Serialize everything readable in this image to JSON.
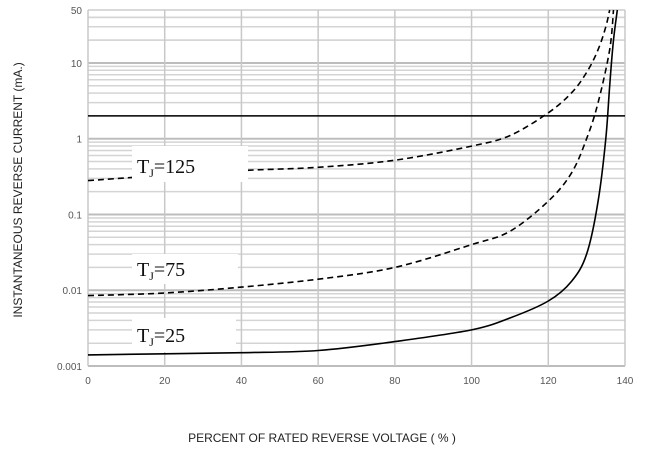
{
  "chart_data": {
    "type": "line",
    "xlabel": "PERCENT OF RATED REVERSE VOLTAGE ( % )",
    "ylabel": "INSTANTANEOUS REVERSE CURRENT (mA.)",
    "x_ticks": [
      "0",
      "20",
      "40",
      "60",
      "80",
      "100",
      "120",
      "140"
    ],
    "y_ticks": [
      "0.001",
      "0.01",
      "0.1",
      "1",
      "10",
      "50"
    ],
    "x_range": [
      0,
      140
    ],
    "y_range": [
      0.001,
      50
    ],
    "y_scale": "log",
    "grid": true,
    "reference_line_y": 2,
    "series": [
      {
        "label_main": "T",
        "label_sub": "J",
        "label_tail": "=125",
        "style": "dashed",
        "points": [
          [
            0,
            0.28
          ],
          [
            20,
            0.33
          ],
          [
            40,
            0.38
          ],
          [
            60,
            0.42
          ],
          [
            80,
            0.52
          ],
          [
            100,
            0.8
          ],
          [
            110,
            1.1
          ],
          [
            120,
            2.2
          ],
          [
            126,
            4
          ],
          [
            130,
            7.5
          ],
          [
            133,
            15
          ],
          [
            135,
            30
          ],
          [
            136,
            50
          ]
        ]
      },
      {
        "label_main": "T",
        "label_sub": "J",
        "label_tail": "=75",
        "style": "dashed",
        "points": [
          [
            0,
            0.0085
          ],
          [
            20,
            0.0092
          ],
          [
            40,
            0.011
          ],
          [
            60,
            0.014
          ],
          [
            80,
            0.02
          ],
          [
            100,
            0.04
          ],
          [
            110,
            0.06
          ],
          [
            120,
            0.15
          ],
          [
            126,
            0.35
          ],
          [
            130,
            1
          ],
          [
            133,
            3
          ],
          [
            136,
            15
          ],
          [
            137,
            50
          ]
        ]
      },
      {
        "label_main": "T",
        "label_sub": "J",
        "label_tail": "=25",
        "style": "solid",
        "points": [
          [
            0,
            0.0014
          ],
          [
            20,
            0.00145
          ],
          [
            40,
            0.0015
          ],
          [
            60,
            0.0016
          ],
          [
            80,
            0.0021
          ],
          [
            100,
            0.003
          ],
          [
            110,
            0.0043
          ],
          [
            120,
            0.0072
          ],
          [
            126,
            0.013
          ],
          [
            130,
            0.03
          ],
          [
            133,
            0.15
          ],
          [
            135,
            1
          ],
          [
            136,
            5
          ],
          [
            137,
            20
          ],
          [
            138,
            50
          ]
        ]
      }
    ]
  }
}
